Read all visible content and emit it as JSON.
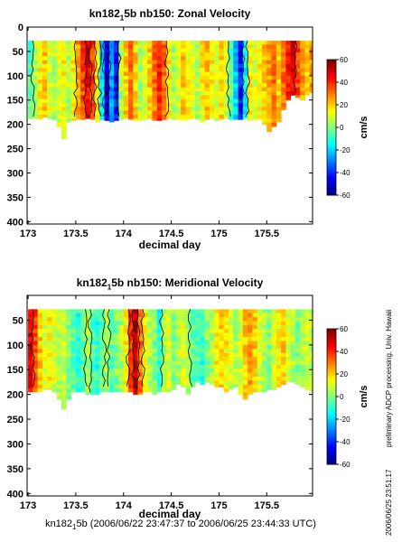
{
  "chart_data": [
    {
      "type": "heatmap",
      "title_prefix": "kn182",
      "title_sub": "1",
      "title_suffix": "5b nb150: Zonal Velocity",
      "xlabel": "decimal day",
      "xlim": [
        172.99,
        175.98
      ],
      "ylim": [
        0,
        405
      ],
      "xticks": [
        173,
        173.5,
        174,
        174.5,
        175,
        175.5
      ],
      "xtick_labels": [
        "173",
        "173.5",
        "174",
        "174.5",
        "175",
        "175.5"
      ],
      "yticks": [
        0,
        50,
        100,
        150,
        200,
        250,
        300,
        350,
        400
      ],
      "yaxis_reversed": true,
      "colorbar": {
        "label": "cm/s",
        "min": -60,
        "max": 60,
        "ticks": [
          -60,
          -40,
          -20,
          0,
          20,
          40,
          60
        ]
      },
      "depth_top": 28,
      "columns": [
        {
          "x": 173.0,
          "v": -5,
          "b": 188
        },
        {
          "x": 173.05,
          "v": 5,
          "b": 188
        },
        {
          "x": 173.1,
          "v": 15,
          "b": 190
        },
        {
          "x": 173.15,
          "v": 20,
          "b": 185
        },
        {
          "x": 173.2,
          "v": 10,
          "b": 188
        },
        {
          "x": 173.25,
          "v": 5,
          "b": 190
        },
        {
          "x": 173.3,
          "v": 10,
          "b": 205
        },
        {
          "x": 173.35,
          "v": 15,
          "b": 230
        },
        {
          "x": 173.4,
          "v": 5,
          "b": 195
        },
        {
          "x": 173.45,
          "v": 15,
          "b": 192
        },
        {
          "x": 173.5,
          "v": 25,
          "b": 190
        },
        {
          "x": 173.55,
          "v": 35,
          "b": 190
        },
        {
          "x": 173.6,
          "v": 45,
          "b": 188
        },
        {
          "x": 173.65,
          "v": 35,
          "b": 190
        },
        {
          "x": 173.7,
          "v": 15,
          "b": 195
        },
        {
          "x": 173.75,
          "v": -20,
          "b": 190
        },
        {
          "x": 173.8,
          "v": -45,
          "b": 192
        },
        {
          "x": 173.85,
          "v": -25,
          "b": 195
        },
        {
          "x": 173.9,
          "v": -40,
          "b": 192
        },
        {
          "x": 173.95,
          "v": 5,
          "b": 190
        },
        {
          "x": 174.0,
          "v": 20,
          "b": 188
        },
        {
          "x": 174.05,
          "v": 30,
          "b": 190
        },
        {
          "x": 174.1,
          "v": 20,
          "b": 192
        },
        {
          "x": 174.15,
          "v": 5,
          "b": 192
        },
        {
          "x": 174.2,
          "v": 10,
          "b": 190
        },
        {
          "x": 174.25,
          "v": 20,
          "b": 188
        },
        {
          "x": 174.3,
          "v": 30,
          "b": 192
        },
        {
          "x": 174.35,
          "v": 40,
          "b": 192
        },
        {
          "x": 174.4,
          "v": 30,
          "b": 190
        },
        {
          "x": 174.45,
          "v": 15,
          "b": 188
        },
        {
          "x": 174.5,
          "v": 5,
          "b": 190
        },
        {
          "x": 174.55,
          "v": 10,
          "b": 190
        },
        {
          "x": 174.6,
          "v": 20,
          "b": 192
        },
        {
          "x": 174.65,
          "v": 15,
          "b": 190
        },
        {
          "x": 174.7,
          "v": 10,
          "b": 188
        },
        {
          "x": 174.75,
          "v": 5,
          "b": 190
        },
        {
          "x": 174.8,
          "v": 15,
          "b": 195
        },
        {
          "x": 174.85,
          "v": 20,
          "b": 190
        },
        {
          "x": 174.9,
          "v": 15,
          "b": 188
        },
        {
          "x": 174.95,
          "v": 10,
          "b": 192
        },
        {
          "x": 175.0,
          "v": 20,
          "b": 190
        },
        {
          "x": 175.05,
          "v": 10,
          "b": 188
        },
        {
          "x": 175.1,
          "v": -5,
          "b": 190
        },
        {
          "x": 175.15,
          "v": -20,
          "b": 190
        },
        {
          "x": 175.2,
          "v": -40,
          "b": 190
        },
        {
          "x": 175.25,
          "v": -15,
          "b": 188
        },
        {
          "x": 175.3,
          "v": 15,
          "b": 192
        },
        {
          "x": 175.35,
          "v": 10,
          "b": 190
        },
        {
          "x": 175.4,
          "v": 15,
          "b": 190
        },
        {
          "x": 175.45,
          "v": 20,
          "b": 200
        },
        {
          "x": 175.5,
          "v": 25,
          "b": 215
        },
        {
          "x": 175.55,
          "v": 30,
          "b": 205
        },
        {
          "x": 175.6,
          "v": 20,
          "b": 195
        },
        {
          "x": 175.65,
          "v": 30,
          "b": 170
        },
        {
          "x": 175.7,
          "v": 40,
          "b": 150
        },
        {
          "x": 175.75,
          "v": 45,
          "b": 140
        },
        {
          "x": 175.8,
          "v": 35,
          "b": 145
        },
        {
          "x": 175.85,
          "v": 25,
          "b": 150
        },
        {
          "x": 175.9,
          "v": 20,
          "b": 140
        },
        {
          "x": 175.95,
          "v": 25,
          "b": 135
        }
      ]
    },
    {
      "type": "heatmap",
      "title_prefix": "kn182",
      "title_sub": "1",
      "title_suffix": "5b nb150: Meridional Velocity",
      "xlabel": "decimal day",
      "xlim": [
        172.99,
        175.98
      ],
      "ylim": [
        0,
        405
      ],
      "xticks": [
        173,
        173.5,
        174,
        174.5,
        175,
        175.5
      ],
      "xtick_labels": [
        "173",
        "173.5",
        "174",
        "174.5",
        "175",
        "175.5"
      ],
      "yticks": [
        50,
        100,
        150,
        200,
        250,
        300,
        350,
        400
      ],
      "yaxis_reversed": true,
      "colorbar": {
        "label": "cm/s",
        "min": -60,
        "max": 60,
        "ticks": [
          -60,
          -40,
          -20,
          0,
          20,
          40,
          60
        ]
      },
      "depth_top": 28,
      "columns": [
        {
          "x": 173.0,
          "v": 45,
          "b": 195
        },
        {
          "x": 173.05,
          "v": 35,
          "b": 195
        },
        {
          "x": 173.1,
          "v": 20,
          "b": 195
        },
        {
          "x": 173.15,
          "v": 10,
          "b": 190
        },
        {
          "x": 173.2,
          "v": 15,
          "b": 190
        },
        {
          "x": 173.25,
          "v": 10,
          "b": 195
        },
        {
          "x": 173.3,
          "v": 5,
          "b": 210
        },
        {
          "x": 173.35,
          "v": 10,
          "b": 230
        },
        {
          "x": 173.4,
          "v": 0,
          "b": 210
        },
        {
          "x": 173.45,
          "v": -5,
          "b": 195
        },
        {
          "x": 173.5,
          "v": -10,
          "b": 195
        },
        {
          "x": 173.55,
          "v": -5,
          "b": 195
        },
        {
          "x": 173.6,
          "v": 5,
          "b": 200
        },
        {
          "x": 173.65,
          "v": -5,
          "b": 200
        },
        {
          "x": 173.7,
          "v": -10,
          "b": 200
        },
        {
          "x": 173.75,
          "v": -5,
          "b": 195
        },
        {
          "x": 173.8,
          "v": 5,
          "b": 195
        },
        {
          "x": 173.85,
          "v": -5,
          "b": 195
        },
        {
          "x": 173.9,
          "v": 0,
          "b": 195
        },
        {
          "x": 173.95,
          "v": 5,
          "b": 195
        },
        {
          "x": 174.0,
          "v": 15,
          "b": 195
        },
        {
          "x": 174.05,
          "v": 35,
          "b": 195
        },
        {
          "x": 174.1,
          "v": 50,
          "b": 200
        },
        {
          "x": 174.15,
          "v": 30,
          "b": 200
        },
        {
          "x": 174.2,
          "v": 15,
          "b": 195
        },
        {
          "x": 174.25,
          "v": 5,
          "b": 195
        },
        {
          "x": 174.3,
          "v": 0,
          "b": 200
        },
        {
          "x": 174.35,
          "v": -10,
          "b": 195
        },
        {
          "x": 174.4,
          "v": 5,
          "b": 195
        },
        {
          "x": 174.45,
          "v": 10,
          "b": 195
        },
        {
          "x": 174.5,
          "v": 0,
          "b": 190
        },
        {
          "x": 174.55,
          "v": 5,
          "b": 180
        },
        {
          "x": 174.6,
          "v": 10,
          "b": 185
        },
        {
          "x": 174.65,
          "v": 5,
          "b": 200
        },
        {
          "x": 174.7,
          "v": -5,
          "b": 185
        },
        {
          "x": 174.75,
          "v": -5,
          "b": 175
        },
        {
          "x": 174.8,
          "v": -10,
          "b": 180
        },
        {
          "x": 174.85,
          "v": 0,
          "b": 175
        },
        {
          "x": 174.9,
          "v": 5,
          "b": 180
        },
        {
          "x": 174.95,
          "v": 15,
          "b": 185
        },
        {
          "x": 175.0,
          "v": 20,
          "b": 185
        },
        {
          "x": 175.05,
          "v": 15,
          "b": 195
        },
        {
          "x": 175.1,
          "v": 10,
          "b": 190
        },
        {
          "x": 175.15,
          "v": 5,
          "b": 185
        },
        {
          "x": 175.2,
          "v": 10,
          "b": 200
        },
        {
          "x": 175.25,
          "v": 20,
          "b": 210
        },
        {
          "x": 175.3,
          "v": 25,
          "b": 200
        },
        {
          "x": 175.35,
          "v": 20,
          "b": 195
        },
        {
          "x": 175.4,
          "v": 10,
          "b": 195
        },
        {
          "x": 175.45,
          "v": 5,
          "b": 195
        },
        {
          "x": 175.5,
          "v": 0,
          "b": 190
        },
        {
          "x": 175.55,
          "v": 10,
          "b": 190
        },
        {
          "x": 175.6,
          "v": 15,
          "b": 185
        },
        {
          "x": 175.65,
          "v": 20,
          "b": 180
        },
        {
          "x": 175.7,
          "v": 10,
          "b": 175
        },
        {
          "x": 175.75,
          "v": 5,
          "b": 175
        },
        {
          "x": 175.8,
          "v": 0,
          "b": 180
        },
        {
          "x": 175.85,
          "v": 5,
          "b": 185
        },
        {
          "x": 175.9,
          "v": 10,
          "b": 190
        },
        {
          "x": 175.95,
          "v": 5,
          "b": 195
        }
      ]
    }
  ],
  "footer": {
    "prefix": "kn182",
    "sub": "1",
    "suffix": "5b (2006/06/22 23:47:37 to 2006/06/25 23:44:33 UTC)"
  },
  "side_note": {
    "processing": "preliminary ADCP processing,  Univ. Hawaii",
    "timestamp": "2006/06/25 23:51:17"
  }
}
